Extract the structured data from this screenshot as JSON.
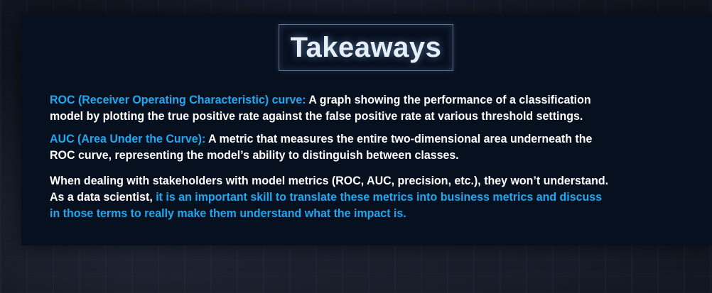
{
  "slide": {
    "title": "Takeaways",
    "colors": {
      "accent": "#1ea8f0",
      "text": "#ffffff",
      "panel": "#07101f"
    },
    "roc": {
      "term": "ROC (Receiver Operating Characteristic) curve:",
      "line1": " A graph showing the performance of a classification",
      "line2": "model by plotting the true positive rate against the false positive rate at various threshold settings."
    },
    "auc": {
      "term": "AUC (Area Under the Curve):",
      "line1": " A metric that measures the entire two-dimensional area underneath the",
      "line2": "ROC curve, representing the model’s ability to distinguish between classes."
    },
    "stakeholders": {
      "line1": "When dealing with stakeholders with model metrics (ROC, AUC, precision, etc.), they won’t understand.",
      "line2_plain": "As a data scientist, ",
      "line2_highlight": "it is an important skill to translate these metrics into business metrics and discuss",
      "line3_highlight": "in those terms to really make them understand what the impact is."
    }
  }
}
